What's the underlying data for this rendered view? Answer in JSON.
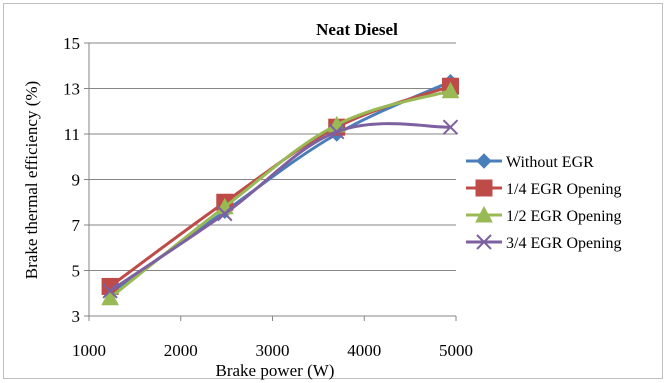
{
  "chart_data": {
    "type": "line",
    "title": "Neat Diesel",
    "xlabel": "Brake power (W)",
    "ylabel": "Brake thermal efficiency (%)",
    "xlim": [
      1000,
      5000
    ],
    "ylim": [
      3,
      15
    ],
    "xticks": [
      1000,
      2000,
      3000,
      4000,
      5000
    ],
    "yticks": [
      3,
      5,
      7,
      9,
      11,
      13,
      15
    ],
    "grid": "horizontal",
    "legend_position": "right",
    "series": [
      {
        "name": "Without EGR",
        "color": "#4a7ebb",
        "marker": "diamond",
        "x": [
          1230,
          2480,
          3700,
          4940
        ],
        "y": [
          4.0,
          7.6,
          11.0,
          13.3
        ]
      },
      {
        "name": "1/4 EGR Opening",
        "color": "#be4b48",
        "marker": "square",
        "x": [
          1230,
          2480,
          3700,
          4940
        ],
        "y": [
          4.3,
          8.0,
          11.3,
          13.1
        ]
      },
      {
        "name": "1/2 EGR Opening",
        "color": "#98b954",
        "marker": "triangle",
        "x": [
          1230,
          2480,
          3700,
          4940
        ],
        "y": [
          3.8,
          7.8,
          11.4,
          12.9
        ]
      },
      {
        "name": "3/4 EGR Opening",
        "color": "#7d60a0",
        "marker": "x",
        "x": [
          1230,
          2480,
          3700,
          4940
        ],
        "y": [
          4.1,
          7.5,
          11.1,
          11.3
        ]
      }
    ]
  }
}
